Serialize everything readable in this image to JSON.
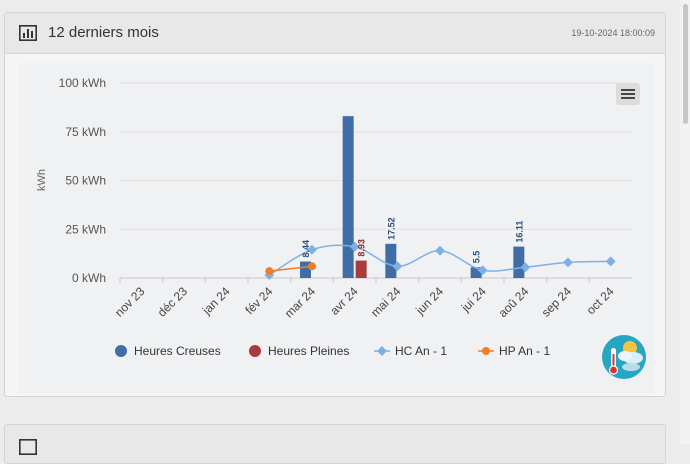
{
  "card": {
    "title": "12 derniers mois",
    "timestamp": "19-10-2024 18:00:09",
    "icon": "bar-chart-icon",
    "menu_icon": "hamburger-menu-icon",
    "weather_icon": "weather-thermometer-icon"
  },
  "colors": {
    "hc_bar": "#3f6ea6",
    "hp_bar": "#a83c3c",
    "hc_prev_line": "#7cb0e6",
    "hp_prev_line": "#f07e26"
  },
  "chart_data": {
    "type": "bar",
    "title": "12 derniers mois",
    "ylabel": "kWh",
    "xlabel": "",
    "ylim": [
      0,
      100
    ],
    "y_ticks": [
      0,
      25,
      50,
      75,
      100
    ],
    "y_tick_labels": [
      "0 kWh",
      "25 kWh",
      "50 kWh",
      "75 kWh",
      "100 kWh"
    ],
    "categories": [
      "nov 23",
      "déc 23",
      "jan 24",
      "fév 24",
      "mar 24",
      "avr 24",
      "mai 24",
      "jun 24",
      "jui 24",
      "aoû 24",
      "sep 24",
      "oct 24"
    ],
    "series": [
      {
        "name": "Heures Creuses",
        "kind": "bar",
        "values": [
          0,
          0,
          0,
          0,
          8.44,
          83,
          17.52,
          0,
          5.5,
          16.11,
          0,
          0
        ]
      },
      {
        "name": "Heures Pleines",
        "kind": "bar",
        "values": [
          0,
          0,
          0,
          0,
          0,
          8.93,
          0,
          0,
          0,
          0,
          0,
          0
        ]
      },
      {
        "name": "HC An - 1",
        "kind": "spline",
        "values": [
          null,
          null,
          null,
          1.5,
          14.5,
          16,
          6,
          14,
          4,
          5.5,
          8,
          8.5
        ]
      },
      {
        "name": "HP An - 1",
        "kind": "spline",
        "values": [
          null,
          null,
          null,
          3.5,
          6,
          null,
          null,
          null,
          null,
          null,
          null,
          null
        ]
      }
    ],
    "data_labels": [
      {
        "series": 0,
        "index": 4,
        "text": "8.44"
      },
      {
        "series": 1,
        "index": 5,
        "text": "8.93"
      },
      {
        "series": 0,
        "index": 6,
        "text": "17.52"
      },
      {
        "series": 0,
        "index": 8,
        "text": "5.5"
      },
      {
        "series": 0,
        "index": 9,
        "text": "16.11"
      }
    ],
    "legend": [
      "Heures Creuses",
      "Heures Pleines",
      "HC An - 1",
      "HP An - 1"
    ],
    "legend_position": "bottom",
    "grid": true
  }
}
